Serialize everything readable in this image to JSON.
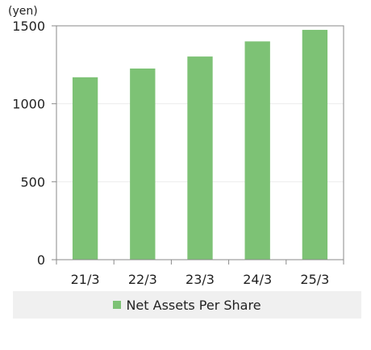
{
  "chart_data": {
    "type": "bar",
    "ylabel": "(yen)",
    "categories": [
      "21/3",
      "22/3",
      "23/3",
      "24/3",
      "25/3"
    ],
    "series": [
      {
        "name": "Net Assets Per Share",
        "values": [
          1170,
          1226,
          1303,
          1400,
          1474
        ]
      }
    ],
    "ylim": [
      0,
      1500
    ],
    "yticks": [
      0,
      500,
      1000,
      1500
    ],
    "grid": true,
    "legend": "bottom",
    "colors": {
      "bar": "#7dc275",
      "axis": "#8a8a8a",
      "grid": "#ebebeb",
      "frame": "#8a8a8a"
    }
  }
}
